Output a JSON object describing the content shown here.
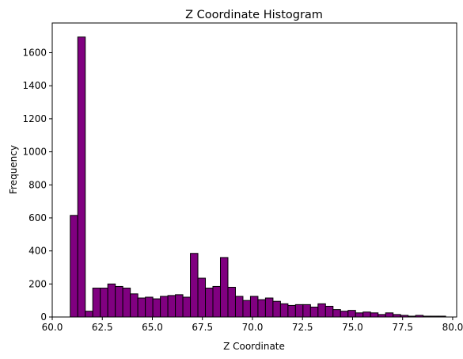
{
  "chart_data": {
    "type": "bar",
    "title": "Z Coordinate Histogram",
    "xlabel": "Z Coordinate",
    "ylabel": "Frequency",
    "xlim": [
      60.0,
      80.2
    ],
    "ylim": [
      0,
      1780
    ],
    "x_ticks": [
      60.0,
      62.5,
      65.0,
      67.5,
      70.0,
      72.5,
      75.0,
      77.5,
      80.0
    ],
    "x_tick_labels": [
      "60.0",
      "62.5",
      "65.0",
      "67.5",
      "70.0",
      "72.5",
      "75.0",
      "77.5",
      "80.0"
    ],
    "y_ticks": [
      0,
      200,
      400,
      600,
      800,
      1000,
      1200,
      1400,
      1600
    ],
    "y_tick_labels": [
      "0",
      "200",
      "400",
      "600",
      "800",
      "1000",
      "1200",
      "1400",
      "1600"
    ],
    "bin_start": 60.9,
    "bin_width": 0.375,
    "counts": [
      615,
      1695,
      35,
      175,
      175,
      200,
      185,
      175,
      140,
      115,
      120,
      110,
      125,
      130,
      135,
      120,
      385,
      235,
      175,
      185,
      360,
      180,
      125,
      100,
      125,
      105,
      115,
      95,
      80,
      70,
      75,
      75,
      60,
      80,
      65,
      45,
      35,
      40,
      25,
      30,
      25,
      15,
      25,
      15,
      10,
      5,
      10,
      5,
      5,
      5
    ],
    "bar_color": "#800080",
    "edge_color": "#000000",
    "grid": false,
    "legend": "none"
  }
}
